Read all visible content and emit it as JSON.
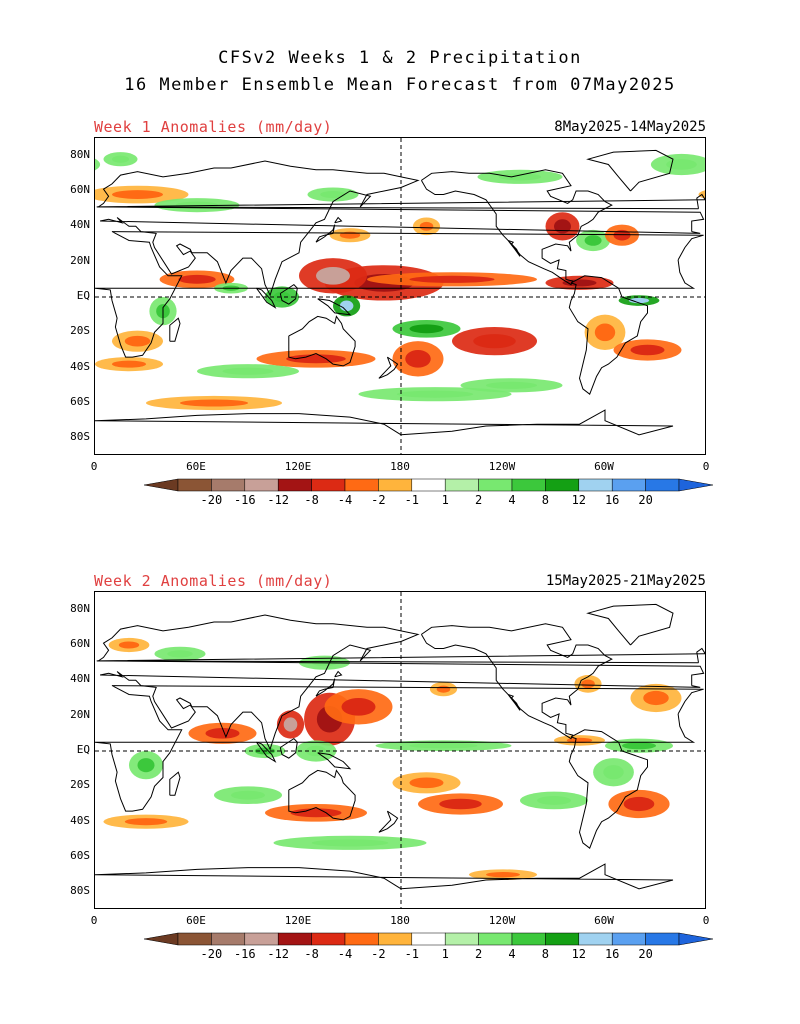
{
  "title_line1": "CFSv2 Weeks 1 & 2 Precipitation",
  "title_line2": "16 Member Ensemble Mean Forecast from 07May2025",
  "panels": [
    {
      "title": "Week 1 Anomalies (mm/day)",
      "dates": "8May2025-14May2025",
      "blobs": [
        {
          "lon": 170,
          "lat": 8,
          "rx": 35,
          "ry": 10,
          "c": -6
        },
        {
          "lon": 140,
          "lat": 12,
          "rx": 20,
          "ry": 10,
          "c": -8
        },
        {
          "lon": 210,
          "lat": 10,
          "rx": 50,
          "ry": 4,
          "c": -4
        },
        {
          "lon": 285,
          "lat": 8,
          "rx": 20,
          "ry": 4,
          "c": -6
        },
        {
          "lon": 60,
          "lat": 10,
          "rx": 22,
          "ry": 5,
          "c": -3
        },
        {
          "lon": 80,
          "lat": 5,
          "rx": 10,
          "ry": 3,
          "c": 3
        },
        {
          "lon": 110,
          "lat": 0,
          "rx": 10,
          "ry": 6,
          "c": 4
        },
        {
          "lon": 148,
          "lat": -5,
          "rx": 8,
          "ry": 6,
          "c": 8
        },
        {
          "lon": 195,
          "lat": -18,
          "rx": 20,
          "ry": 5,
          "c": 6
        },
        {
          "lon": 235,
          "lat": -25,
          "rx": 25,
          "ry": 8,
          "c": -5
        },
        {
          "lon": 190,
          "lat": -35,
          "rx": 15,
          "ry": 10,
          "c": -4
        },
        {
          "lon": 130,
          "lat": -35,
          "rx": 35,
          "ry": 5,
          "c": -3
        },
        {
          "lon": 90,
          "lat": -42,
          "rx": 30,
          "ry": 4,
          "c": 2
        },
        {
          "lon": 25,
          "lat": -25,
          "rx": 15,
          "ry": 6,
          "c": -2
        },
        {
          "lon": 20,
          "lat": -38,
          "rx": 20,
          "ry": 4,
          "c": -2
        },
        {
          "lon": 40,
          "lat": -8,
          "rx": 8,
          "ry": 8,
          "c": 3
        },
        {
          "lon": 300,
          "lat": -20,
          "rx": 12,
          "ry": 10,
          "c": -2
        },
        {
          "lon": 325,
          "lat": -30,
          "rx": 20,
          "ry": 6,
          "c": -4
        },
        {
          "lon": 320,
          "lat": -2,
          "rx": 12,
          "ry": 3,
          "c": 8
        },
        {
          "lon": 275,
          "lat": 40,
          "rx": 10,
          "ry": 8,
          "c": -6
        },
        {
          "lon": 293,
          "lat": 32,
          "rx": 10,
          "ry": 6,
          "c": 3
        },
        {
          "lon": 310,
          "lat": 35,
          "rx": 10,
          "ry": 6,
          "c": -3
        },
        {
          "lon": 195,
          "lat": 40,
          "rx": 8,
          "ry": 5,
          "c": -2
        },
        {
          "lon": 150,
          "lat": 35,
          "rx": 12,
          "ry": 4,
          "c": -2
        },
        {
          "lon": 25,
          "lat": 58,
          "rx": 30,
          "ry": 5,
          "c": -2
        },
        {
          "lon": 60,
          "lat": 52,
          "rx": 25,
          "ry": 4,
          "c": 2
        },
        {
          "lon": 140,
          "lat": 58,
          "rx": 15,
          "ry": 4,
          "c": 2
        },
        {
          "lon": 250,
          "lat": 68,
          "rx": 25,
          "ry": 4,
          "c": 2
        },
        {
          "lon": 345,
          "lat": 75,
          "rx": 18,
          "ry": 6,
          "c": 2
        },
        {
          "lon": 15,
          "lat": 78,
          "rx": 10,
          "ry": 4,
          "c": 2
        },
        {
          "lon": 200,
          "lat": -55,
          "rx": 45,
          "ry": 4,
          "c": 2
        },
        {
          "lon": 70,
          "lat": -60,
          "rx": 40,
          "ry": 4,
          "c": -2
        },
        {
          "lon": 245,
          "lat": -50,
          "rx": 30,
          "ry": 4,
          "c": 2
        }
      ]
    },
    {
      "title": "Week 2 Anomalies (mm/day)",
      "dates": "15May2025-21May2025",
      "blobs": [
        {
          "lon": 138,
          "lat": 18,
          "rx": 15,
          "ry": 15,
          "c": -6
        },
        {
          "lon": 155,
          "lat": 25,
          "rx": 20,
          "ry": 10,
          "c": -3
        },
        {
          "lon": 115,
          "lat": 15,
          "rx": 8,
          "ry": 8,
          "c": -8
        },
        {
          "lon": 75,
          "lat": 10,
          "rx": 20,
          "ry": 6,
          "c": -4
        },
        {
          "lon": 100,
          "lat": 0,
          "rx": 12,
          "ry": 4,
          "c": 3
        },
        {
          "lon": 130,
          "lat": 0,
          "rx": 12,
          "ry": 6,
          "c": 2
        },
        {
          "lon": 195,
          "lat": -18,
          "rx": 20,
          "ry": 6,
          "c": -2
        },
        {
          "lon": 215,
          "lat": -30,
          "rx": 25,
          "ry": 6,
          "c": -4
        },
        {
          "lon": 205,
          "lat": 3,
          "rx": 40,
          "ry": 3,
          "c": 2
        },
        {
          "lon": 285,
          "lat": 6,
          "rx": 15,
          "ry": 3,
          "c": -2
        },
        {
          "lon": 320,
          "lat": 3,
          "rx": 20,
          "ry": 4,
          "c": 3
        },
        {
          "lon": 305,
          "lat": -12,
          "rx": 12,
          "ry": 8,
          "c": 2
        },
        {
          "lon": 320,
          "lat": -30,
          "rx": 18,
          "ry": 8,
          "c": -3
        },
        {
          "lon": 330,
          "lat": 30,
          "rx": 15,
          "ry": 8,
          "c": -2
        },
        {
          "lon": 290,
          "lat": 38,
          "rx": 8,
          "ry": 5,
          "c": -2
        },
        {
          "lon": 205,
          "lat": 35,
          "rx": 8,
          "ry": 4,
          "c": -2
        },
        {
          "lon": 135,
          "lat": 50,
          "rx": 15,
          "ry": 4,
          "c": 2
        },
        {
          "lon": 50,
          "lat": 55,
          "rx": 15,
          "ry": 4,
          "c": 2
        },
        {
          "lon": 20,
          "lat": 60,
          "rx": 12,
          "ry": 4,
          "c": -2
        },
        {
          "lon": 30,
          "lat": -8,
          "rx": 10,
          "ry": 8,
          "c": 3
        },
        {
          "lon": 90,
          "lat": -25,
          "rx": 20,
          "ry": 5,
          "c": 2
        },
        {
          "lon": 130,
          "lat": -35,
          "rx": 30,
          "ry": 5,
          "c": -3
        },
        {
          "lon": 30,
          "lat": -40,
          "rx": 25,
          "ry": 4,
          "c": -2
        },
        {
          "lon": 150,
          "lat": -52,
          "rx": 45,
          "ry": 4,
          "c": 2
        },
        {
          "lon": 240,
          "lat": -70,
          "rx": 20,
          "ry": 3,
          "c": -2
        },
        {
          "lon": 270,
          "lat": -28,
          "rx": 20,
          "ry": 5,
          "c": 2
        }
      ]
    }
  ],
  "lat_labels": [
    "80N",
    "60N",
    "40N",
    "20N",
    "EQ",
    "20S",
    "40S",
    "60S",
    "80S"
  ],
  "lon_labels": [
    "0",
    "60E",
    "120E",
    "180",
    "120W",
    "60W",
    "0"
  ],
  "colorbar": {
    "labels": [
      "-20",
      "-16",
      "-12",
      "-8",
      "-4",
      "-2",
      "-1",
      "1",
      "2",
      "4",
      "8",
      "12",
      "16",
      "20"
    ],
    "colors": [
      "#8b5535",
      "#a67b6b",
      "#c8a098",
      "#a31414",
      "#dc2a14",
      "#ff6a14",
      "#ffb43c",
      "#ffffff",
      "#b4f0a8",
      "#78e870",
      "#3cc83c",
      "#14a014",
      "#a0d2f0",
      "#5aa0f0",
      "#2878e6"
    ]
  }
}
